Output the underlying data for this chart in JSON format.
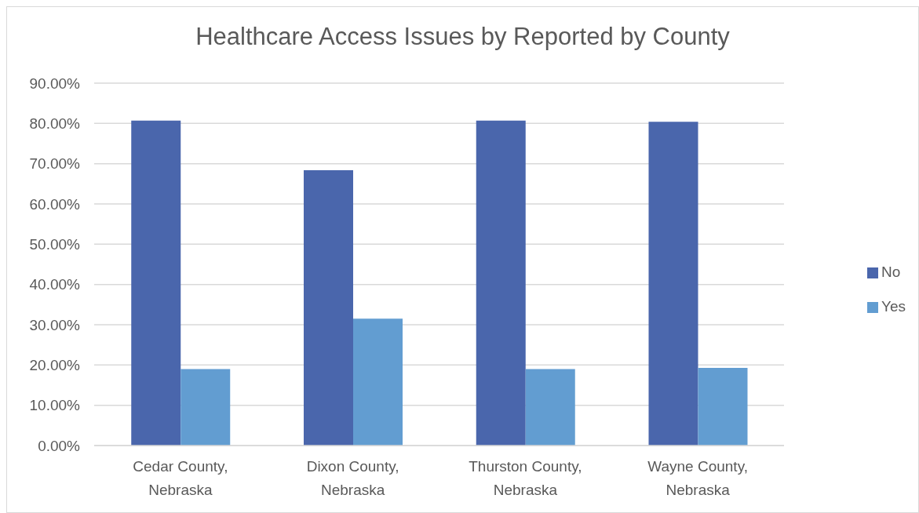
{
  "chart_data": {
    "type": "bar",
    "title": "Healthcare Access Issues by Reported by County",
    "categories": [
      "Cedar County, Nebraska",
      "Dixon County, Nebraska",
      "Thurston County, Nebraska",
      "Wayne County, Nebraska"
    ],
    "series": [
      {
        "name": "No",
        "color": "#4a66ac",
        "values": [
          80.7,
          68.4,
          80.7,
          80.4
        ]
      },
      {
        "name": "Yes",
        "color": "#629dd1",
        "values": [
          19.0,
          31.5,
          19.0,
          19.3
        ]
      }
    ],
    "ylim": [
      0,
      90
    ],
    "yticks": [
      {
        "value": 0,
        "label": "0.00%"
      },
      {
        "value": 10,
        "label": "10.00%"
      },
      {
        "value": 20,
        "label": "20.00%"
      },
      {
        "value": 30,
        "label": "30.00%"
      },
      {
        "value": 40,
        "label": "40.00%"
      },
      {
        "value": 50,
        "label": "50.00%"
      },
      {
        "value": 60,
        "label": "60.00%"
      },
      {
        "value": 70,
        "label": "70.00%"
      },
      {
        "value": 80,
        "label": "80.00%"
      },
      {
        "value": 90,
        "label": "90.00%"
      }
    ],
    "grid": "y",
    "legend": "right"
  }
}
